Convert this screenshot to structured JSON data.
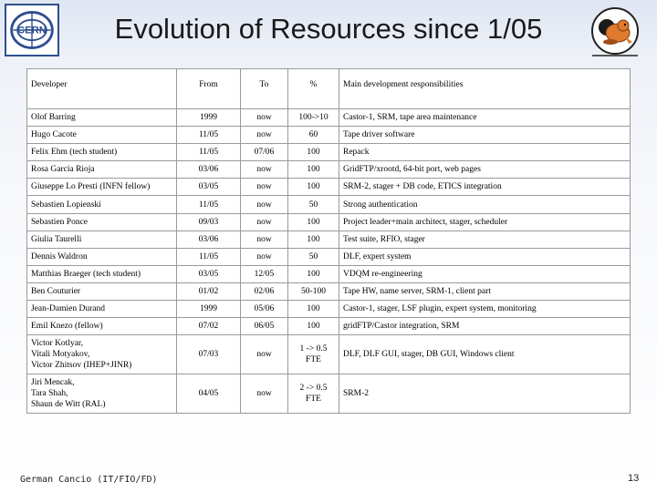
{
  "title": "Evolution of Resources since 1/05",
  "logo_text": "CERN",
  "table": {
    "headers": [
      "Developer",
      "From",
      "To",
      "%",
      "Main development responsibilities"
    ],
    "rows": [
      [
        "Olof Barring",
        "1999",
        "now",
        "100->10",
        "Castor-1, SRM, tape area maintenance"
      ],
      [
        "Hugo Cacote",
        "11/05",
        "now",
        "60",
        "Tape driver software"
      ],
      [
        "Felix Ehm (tech student)",
        "11/05",
        "07/06",
        "100",
        "Repack"
      ],
      [
        "Rosa Garcia Rioja",
        "03/06",
        "now",
        "100",
        "GridFTP/xrootd, 64-bit port, web pages"
      ],
      [
        "Giuseppe Lo Presti (INFN fellow)",
        "03/05",
        "now",
        "100",
        "SRM-2, stager + DB code, ETICS integration"
      ],
      [
        "Sebastien Lopienski",
        "11/05",
        "now",
        "50",
        "Strong authentication"
      ],
      [
        "Sebastien Ponce",
        "09/03",
        "now",
        "100",
        "Project leader+main architect, stager, scheduler"
      ],
      [
        "Giulia Taurelli",
        "03/06",
        "now",
        "100",
        "Test suite, RFIO, stager"
      ],
      [
        "Dennis Waldron",
        "11/05",
        "now",
        "50",
        "DLF, expert system"
      ],
      [
        "Matthias Braeger (tech student)",
        "03/05",
        "12/05",
        "100",
        "VDQM re-engineering"
      ],
      [
        "Ben Couturier",
        "01/02",
        "02/06",
        "50-100",
        "Tape HW, name server, SRM-1, client part"
      ],
      [
        "Jean-Damien Durand",
        "1999",
        "05/06",
        "100",
        "Castor-1, stager, LSF plugin, expert system, monitoring"
      ],
      [
        "Emil Knezo (fellow)",
        "07/02",
        "06/05",
        "100",
        "gridFTP/Castor integration, SRM"
      ]
    ],
    "multi_rows": [
      {
        "developer_lines": [
          "Victor Kotlyar,",
          "Vitali Motyakov,",
          "Victor Zhitsov (IHEP+JINR)"
        ],
        "from": "07/03",
        "to": "now",
        "pct_lines": [
          "1 -> 0.5",
          "FTE"
        ],
        "resp": "DLF, DLF GUI, stager, DB GUI, Windows client"
      },
      {
        "developer_lines": [
          "Jiri Mencak,",
          "Tara Shah,",
          "Shaun de Witt (RAL)"
        ],
        "from": "04/05",
        "to": "now",
        "pct_lines": [
          "2 -> 0.5",
          "FTE"
        ],
        "resp": "SRM-2"
      }
    ]
  },
  "footer": {
    "author": "German Cancio (IT/FIO/FD)",
    "page_number": "13"
  },
  "colors": {
    "logo_blue": "#2e4f8f",
    "mascot_orange": "#e07a2e",
    "border_gray": "#9a9a9a"
  }
}
